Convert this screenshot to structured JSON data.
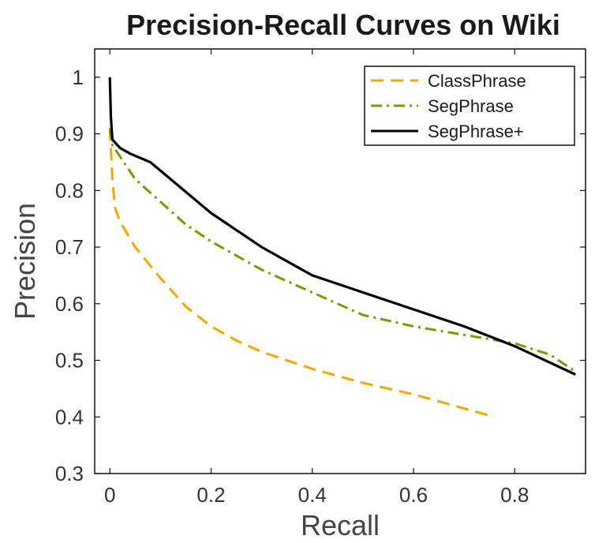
{
  "chart_data": {
    "type": "line",
    "title": "Precision-Recall Curves on Wiki",
    "xlabel": "Recall",
    "ylabel": "Precision",
    "xlim": [
      -0.03,
      0.94
    ],
    "ylim": [
      0.3,
      1.05
    ],
    "xticks": [
      0,
      0.2,
      0.4,
      0.6,
      0.8
    ],
    "xtick_labels": [
      "0",
      "0.2",
      "0.4",
      "0.6",
      "0.8"
    ],
    "yticks": [
      0.3,
      0.4,
      0.5,
      0.6,
      0.7,
      0.8,
      0.9,
      1.0
    ],
    "ytick_labels": [
      "0.3",
      "0.4",
      "0.5",
      "0.6",
      "0.7",
      "0.8",
      "0.9",
      "1"
    ],
    "grid": false,
    "legend_position": "top-right",
    "series": [
      {
        "name": "ClassPhrase",
        "style": "dashed",
        "color": "#F5A700",
        "points": [
          [
            0.0,
            0.91
          ],
          [
            0.005,
            0.82
          ],
          [
            0.01,
            0.77
          ],
          [
            0.02,
            0.745
          ],
          [
            0.05,
            0.7
          ],
          [
            0.1,
            0.645
          ],
          [
            0.15,
            0.595
          ],
          [
            0.2,
            0.56
          ],
          [
            0.25,
            0.535
          ],
          [
            0.3,
            0.515
          ],
          [
            0.4,
            0.485
          ],
          [
            0.5,
            0.46
          ],
          [
            0.6,
            0.44
          ],
          [
            0.7,
            0.415
          ],
          [
            0.76,
            0.4
          ]
        ]
      },
      {
        "name": "SegPhrase",
        "style": "dashdot",
        "color": "#7A9A01",
        "points": [
          [
            0.0,
            0.91
          ],
          [
            0.005,
            0.88
          ],
          [
            0.02,
            0.86
          ],
          [
            0.05,
            0.82
          ],
          [
            0.1,
            0.78
          ],
          [
            0.15,
            0.74
          ],
          [
            0.2,
            0.71
          ],
          [
            0.3,
            0.66
          ],
          [
            0.4,
            0.62
          ],
          [
            0.5,
            0.58
          ],
          [
            0.6,
            0.56
          ],
          [
            0.7,
            0.545
          ],
          [
            0.8,
            0.53
          ],
          [
            0.87,
            0.51
          ],
          [
            0.92,
            0.48
          ]
        ]
      },
      {
        "name": "SegPhrase+",
        "style": "solid",
        "color": "#000000",
        "points": [
          [
            0.0,
            1.0
          ],
          [
            0.002,
            0.93
          ],
          [
            0.005,
            0.89
          ],
          [
            0.02,
            0.875
          ],
          [
            0.04,
            0.865
          ],
          [
            0.08,
            0.85
          ],
          [
            0.12,
            0.82
          ],
          [
            0.2,
            0.76
          ],
          [
            0.3,
            0.7
          ],
          [
            0.4,
            0.65
          ],
          [
            0.5,
            0.62
          ],
          [
            0.6,
            0.59
          ],
          [
            0.7,
            0.56
          ],
          [
            0.8,
            0.525
          ],
          [
            0.92,
            0.475
          ]
        ]
      }
    ]
  }
}
